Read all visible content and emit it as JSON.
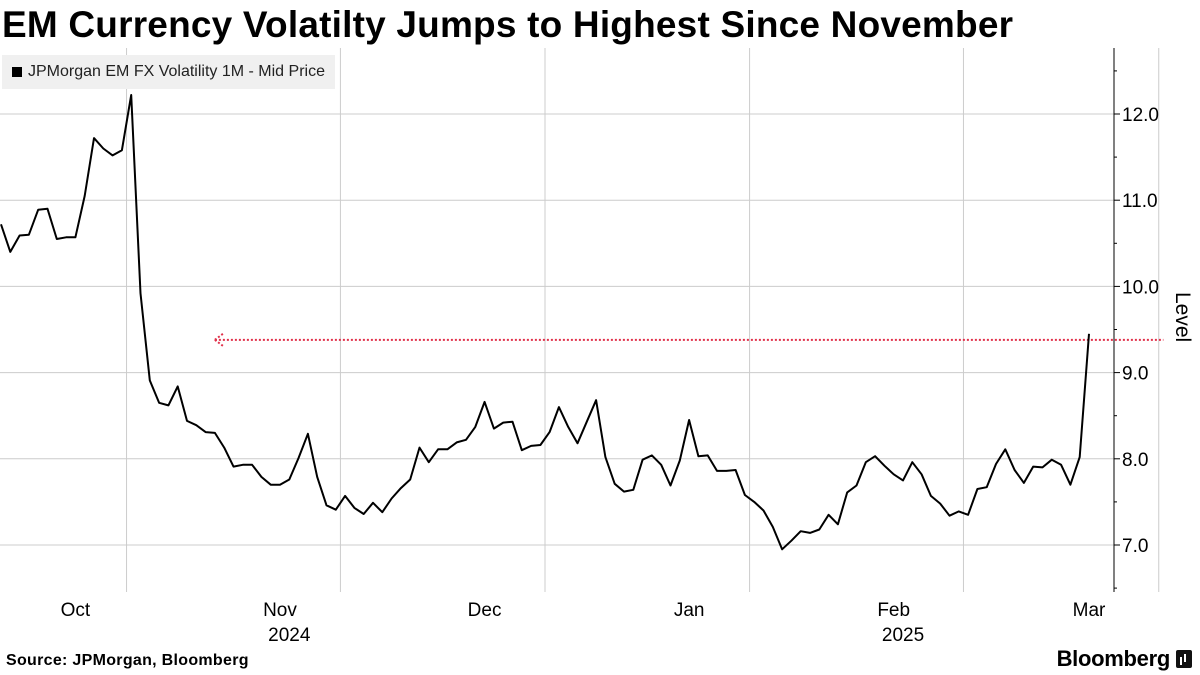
{
  "title": "EM Currency Volatilty Jumps to Highest Since November",
  "source": "Source: JPMorgan, Bloomberg",
  "brand": "Bloomberg",
  "colors": {
    "line": "#000000",
    "annotation": "#e0304a",
    "grid": "#cccccc"
  },
  "chart_data": {
    "type": "line",
    "title": "EM Currency Volatilty Jumps to Highest Since November",
    "ylabel": "Level",
    "xlabel": "",
    "ylim": [
      6.5,
      12.7
    ],
    "yticks": [
      7.0,
      8.0,
      9.0,
      10.0,
      11.0,
      12.0
    ],
    "ytick_labels": [
      "7.0",
      "8.0",
      "9.0",
      "10.0",
      "11.0",
      "12.0"
    ],
    "legend_position": "top-left",
    "month_labels": [
      {
        "label": "Oct",
        "index": 8
      },
      {
        "label": "Nov",
        "index": 30
      },
      {
        "label": "Dec",
        "index": 52
      },
      {
        "label": "Jan",
        "index": 74
      },
      {
        "label": "Feb",
        "index": 96
      },
      {
        "label": "Mar",
        "index": 117
      }
    ],
    "month_dividers": [
      13.5,
      36.5,
      58.5,
      80.5,
      103.5,
      124.5
    ],
    "year_labels": [
      {
        "label": "2024",
        "index": 31
      },
      {
        "label": "2025",
        "index": 97
      }
    ],
    "series": [
      {
        "name": "JPMorgan EM FX Volatility 1M - Mid Price",
        "values": [
          10.72,
          10.4,
          10.59,
          10.6,
          10.89,
          10.9,
          10.55,
          10.57,
          10.57,
          11.05,
          11.72,
          11.6,
          11.52,
          11.58,
          12.22,
          9.92,
          8.91,
          8.65,
          8.62,
          8.84,
          8.44,
          8.39,
          8.31,
          8.3,
          8.13,
          7.91,
          7.93,
          7.93,
          7.79,
          7.7,
          7.7,
          7.76,
          8.01,
          8.29,
          7.79,
          7.46,
          7.41,
          7.57,
          7.43,
          7.36,
          7.49,
          7.38,
          7.54,
          7.66,
          7.76,
          8.13,
          7.96,
          8.11,
          8.11,
          8.19,
          8.22,
          8.37,
          8.66,
          8.35,
          8.42,
          8.43,
          8.1,
          8.15,
          8.16,
          8.31,
          8.6,
          8.37,
          8.18,
          8.43,
          8.68,
          8.02,
          7.71,
          7.62,
          7.64,
          7.99,
          8.04,
          7.93,
          7.69,
          7.98,
          8.45,
          8.03,
          8.04,
          7.86,
          7.86,
          7.87,
          7.58,
          7.5,
          7.4,
          7.21,
          6.95,
          7.05,
          7.16,
          7.14,
          7.18,
          7.35,
          7.24,
          7.61,
          7.69,
          7.96,
          8.03,
          7.92,
          7.82,
          7.75,
          7.96,
          7.82,
          7.57,
          7.48,
          7.34,
          7.39,
          7.35,
          7.65,
          7.67,
          7.94,
          8.11,
          7.87,
          7.72,
          7.91,
          7.9,
          7.99,
          7.93,
          7.7,
          8.02,
          9.45
        ]
      }
    ],
    "annotations": [
      {
        "type": "horizontal-arrow",
        "y": 9.38,
        "from_index": 23,
        "to_index": 125,
        "style": "dotted",
        "direction": "left"
      }
    ]
  }
}
